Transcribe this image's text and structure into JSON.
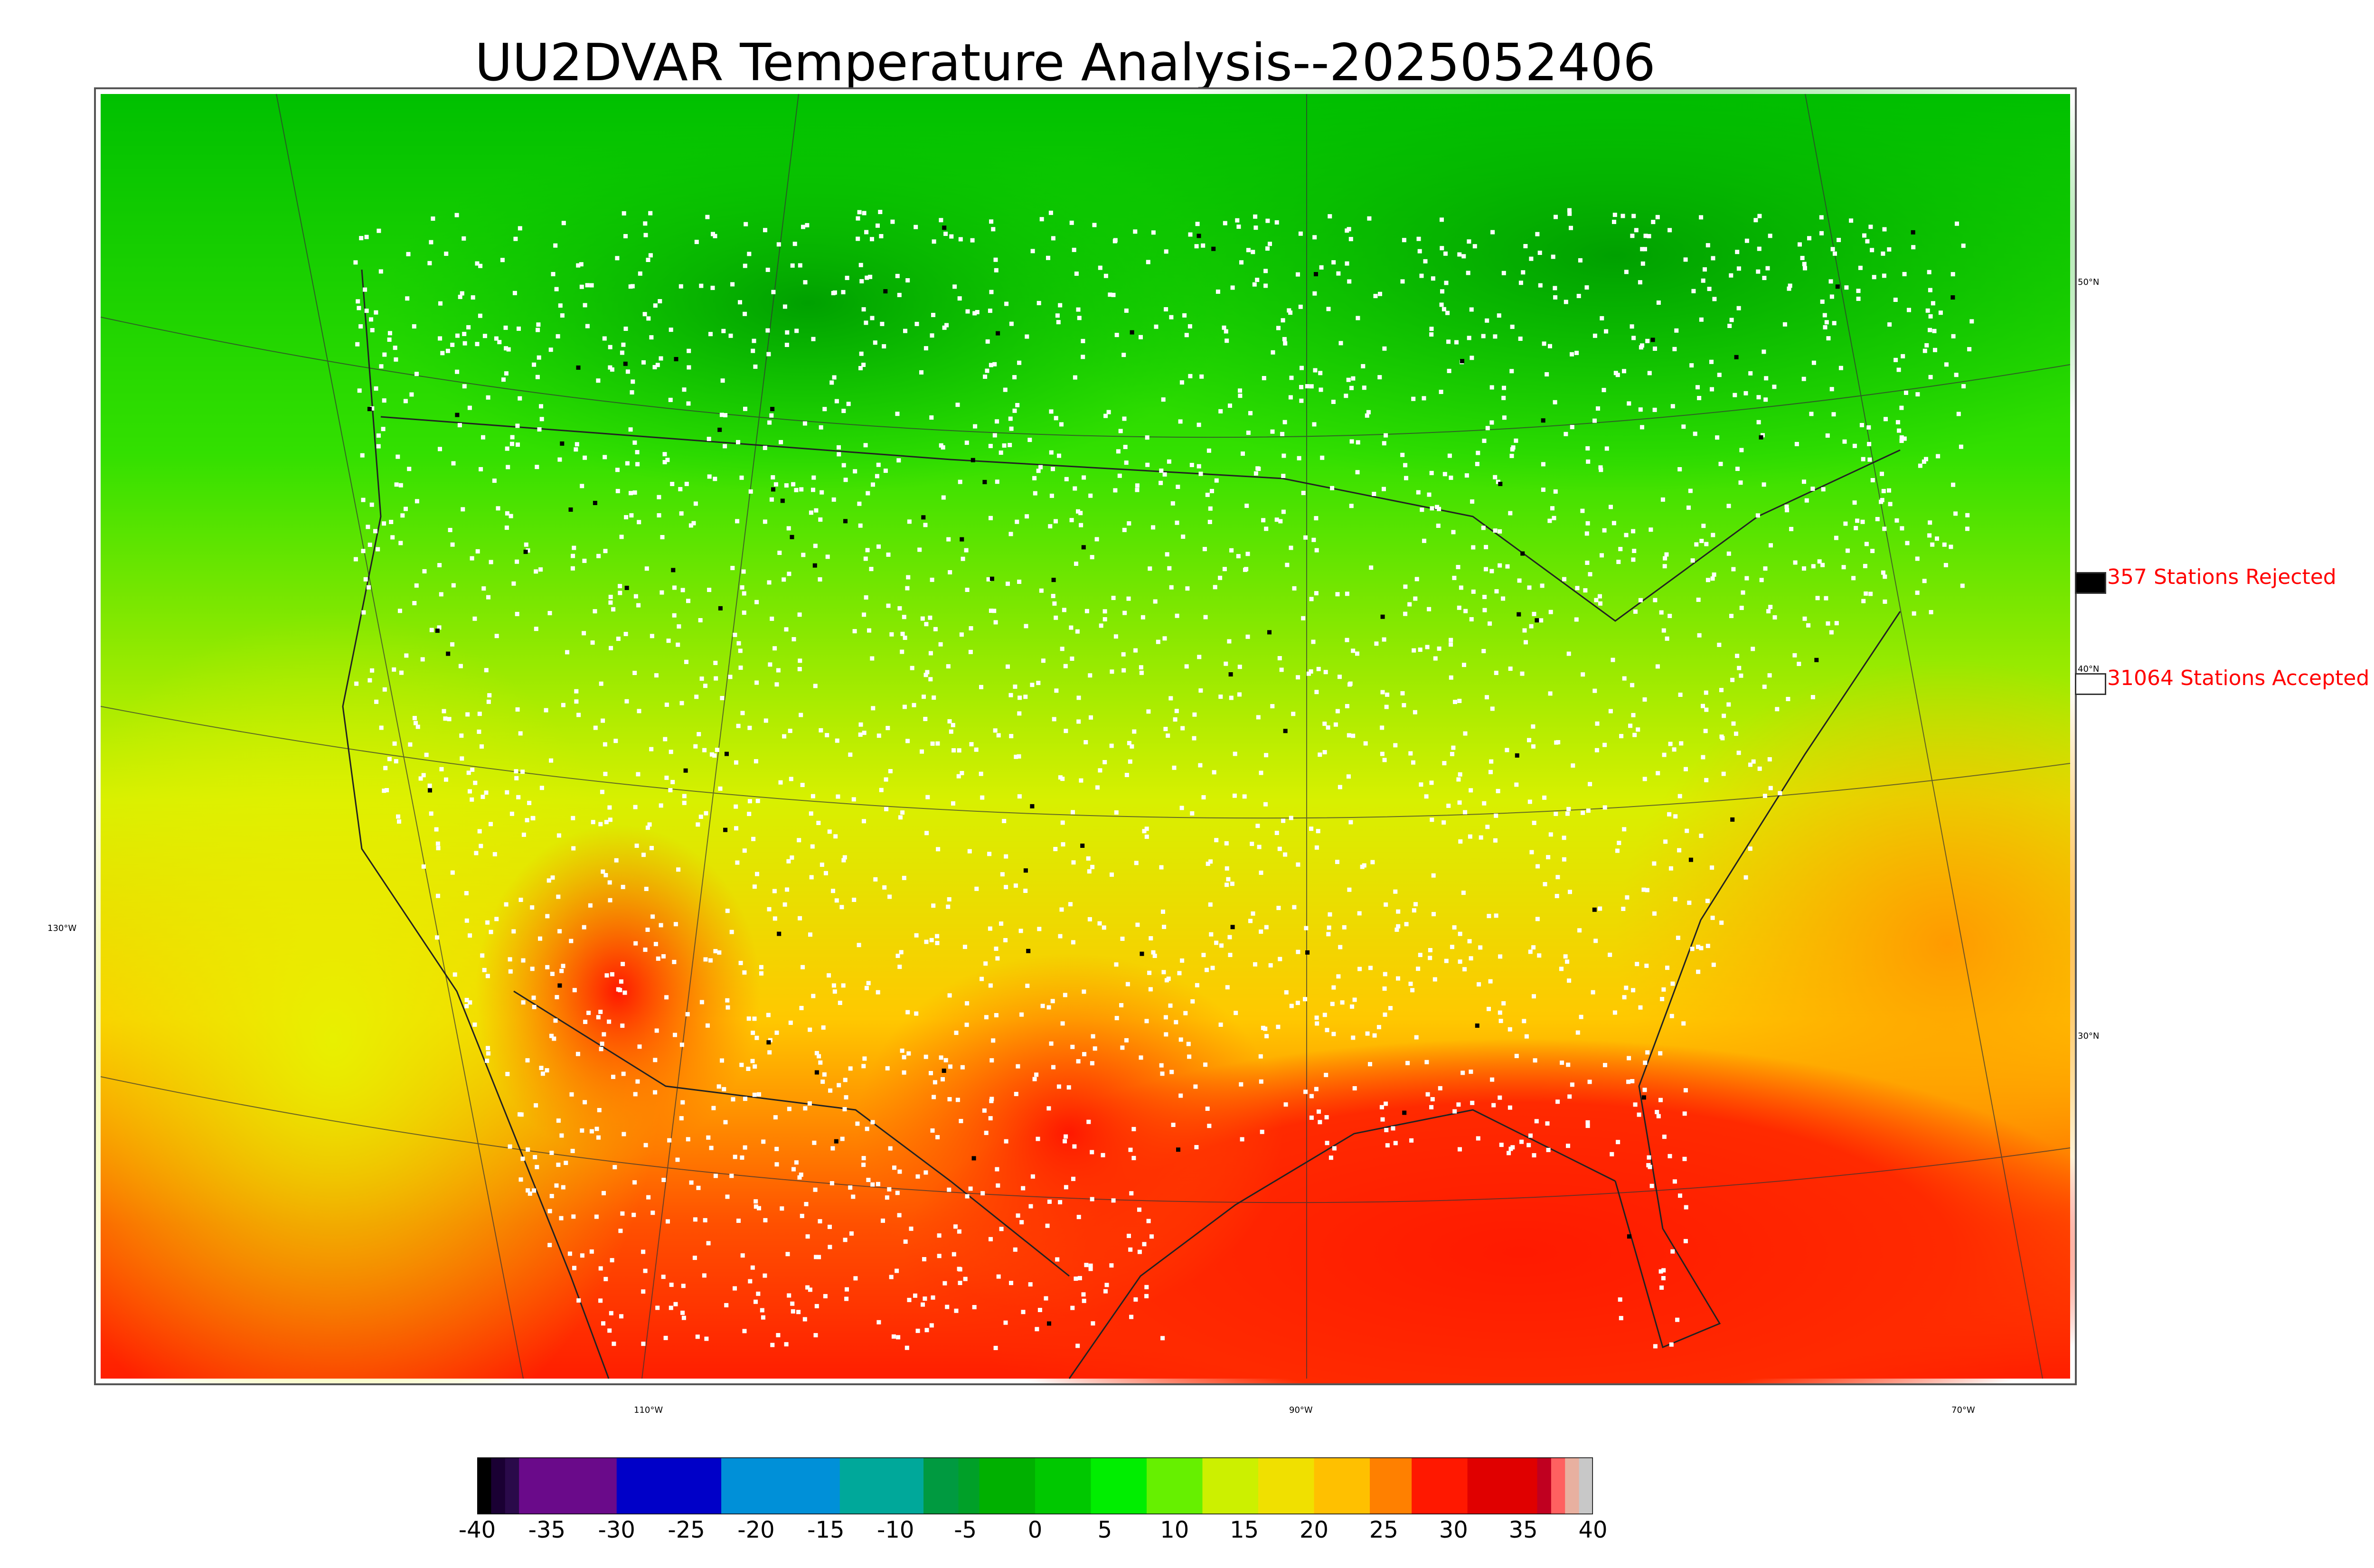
{
  "title": "UU2DVAR Temperature Analysis--2025052406",
  "legend": {
    "rejected": {
      "label": "357 Stations Rejected",
      "swatch_color": "#000000"
    },
    "accepted": {
      "label": "31064 Stations Accepted",
      "swatch_color": "#ffffff"
    }
  },
  "lat_labels": [
    "50°N",
    "40°N",
    "30°N"
  ],
  "lon_labels": [
    "130°W",
    "110°W",
    "90°W",
    "70°W"
  ],
  "colorbar": {
    "ticks": [
      "-40",
      "-35",
      "-30",
      "-25",
      "-20",
      "-15",
      "-10",
      "-5",
      "0",
      "5",
      "10",
      "15",
      "20",
      "25",
      "30",
      "35",
      "40"
    ],
    "segments": [
      {
        "from": -40,
        "to": -39,
        "color": "#000000"
      },
      {
        "from": -39,
        "to": -38,
        "color": "#1a0033"
      },
      {
        "from": -38,
        "to": -37,
        "color": "#2a0a4a"
      },
      {
        "from": -37,
        "to": -30,
        "color": "#6a0a8a"
      },
      {
        "from": -30,
        "to": -22.5,
        "color": "#0000c8"
      },
      {
        "from": -22.5,
        "to": -14,
        "color": "#0090d8"
      },
      {
        "from": -14,
        "to": -8,
        "color": "#00a89a"
      },
      {
        "from": -8,
        "to": -5.5,
        "color": "#009a40"
      },
      {
        "from": -5.5,
        "to": -4,
        "color": "#00a028"
      },
      {
        "from": -4,
        "to": 0,
        "color": "#00b000"
      },
      {
        "from": 0,
        "to": 4,
        "color": "#00c800"
      },
      {
        "from": 4,
        "to": 8,
        "color": "#00ee00"
      },
      {
        "from": 8,
        "to": 12,
        "color": "#66f000"
      },
      {
        "from": 12,
        "to": 16,
        "color": "#ccf000"
      },
      {
        "from": 16,
        "to": 20,
        "color": "#f0e000"
      },
      {
        "from": 20,
        "to": 24,
        "color": "#ffc000"
      },
      {
        "from": 24,
        "to": 27,
        "color": "#ff8000"
      },
      {
        "from": 27,
        "to": 31,
        "color": "#ff1800"
      },
      {
        "from": 31,
        "to": 36,
        "color": "#e00000"
      },
      {
        "from": 36,
        "to": 37,
        "color": "#c00020"
      },
      {
        "from": 37,
        "to": 38,
        "color": "#ff6060"
      },
      {
        "from": 38,
        "to": 39,
        "color": "#e8b0a0"
      },
      {
        "from": 39,
        "to": 40,
        "color": "#c8c8c8"
      }
    ]
  },
  "colors": {
    "cold_north": "#00b000",
    "mid_green": "#33e000",
    "yellow": "#e8f000",
    "orange": "#ffaa00",
    "hot_red": "#ff1e00",
    "rejected_station": "#000000",
    "accepted_station": "#ffffff"
  }
}
